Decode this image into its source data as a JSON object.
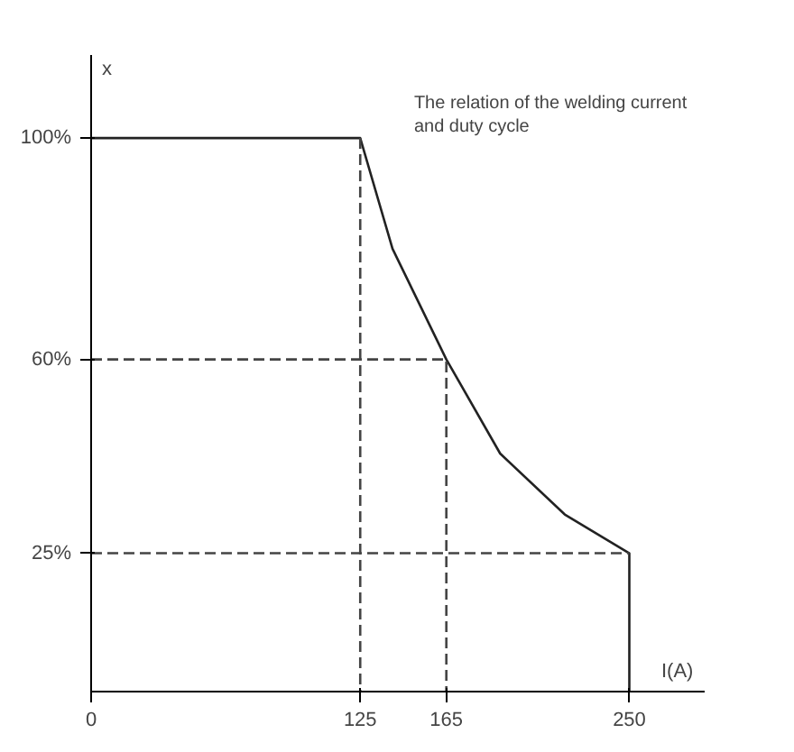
{
  "chart_data": {
    "type": "line",
    "xlabel": "I(A)",
    "ylabel": "x",
    "annotations": [
      "The relation of the welding current\nand duty cycle"
    ],
    "series": [
      {
        "color": "#222222",
        "line_style": "solid",
        "x": [
          0,
          125,
          140,
          165,
          190,
          220,
          250,
          250
        ],
        "values": [
          100,
          100,
          80,
          60,
          43,
          32,
          25,
          0
        ]
      },
      {
        "color": "#444444",
        "line_style": "dashed",
        "x": [
          0,
          165,
          165
        ],
        "values": [
          60,
          60,
          0
        ]
      },
      {
        "color": "#444444",
        "line_style": "dashed",
        "x": [
          0,
          250
        ],
        "values": [
          25,
          25
        ]
      },
      {
        "color": "#444444",
        "line_style": "dashed",
        "x": [
          125,
          125
        ],
        "values": [
          100,
          0
        ]
      }
    ],
    "xlim": [
      0,
      285
    ],
    "ylim": [
      0,
      115
    ],
    "xticks": [
      0,
      125,
      165,
      250
    ],
    "yticks": [
      {
        "value": 25,
        "label": "25%"
      },
      {
        "value": 60,
        "label": "60%"
      },
      {
        "value": 100,
        "label": "100%"
      }
    ],
    "grid": false,
    "marker": "none"
  }
}
